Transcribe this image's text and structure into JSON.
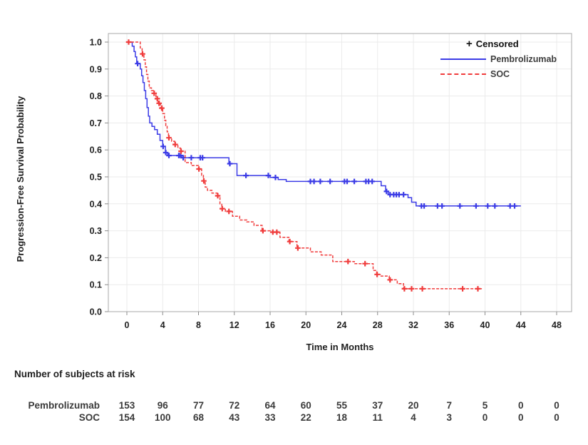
{
  "legend": {
    "censored": {
      "marker": "+",
      "label": "Censored"
    },
    "entries": [
      {
        "id": "pembrolizumab",
        "label": "Pembrolizumab"
      },
      {
        "id": "soc",
        "label": "SOC"
      }
    ]
  },
  "chart_data": {
    "type": "line",
    "subtype": "kaplan-meier-step",
    "title": "",
    "xlabel": "Time in Months",
    "ylabel": "Progression-Free Survival Probability",
    "xlim": [
      0,
      48
    ],
    "ylim": [
      0.0,
      1.0
    ],
    "x_ticks": [
      0,
      4,
      8,
      12,
      16,
      20,
      24,
      28,
      32,
      36,
      40,
      44,
      48
    ],
    "y_ticks": [
      0.0,
      0.1,
      0.2,
      0.3,
      0.4,
      0.5,
      0.6,
      0.7,
      0.8,
      0.9,
      1.0
    ],
    "grid": true,
    "legend_position": "top-right-inside",
    "series": [
      {
        "id": "pembrolizumab",
        "name": "Pembrolizumab",
        "color": "#3B3BE6",
        "dash": "",
        "end_time": 44.0,
        "points": [
          [
            0,
            1
          ],
          [
            0.6,
            0.985
          ],
          [
            0.8,
            0.965
          ],
          [
            0.95,
            0.945
          ],
          [
            1.1,
            0.92
          ],
          [
            1.5,
            0.9
          ],
          [
            1.65,
            0.875
          ],
          [
            1.8,
            0.85
          ],
          [
            1.95,
            0.82
          ],
          [
            2.1,
            0.79
          ],
          [
            2.25,
            0.757
          ],
          [
            2.4,
            0.725
          ],
          [
            2.55,
            0.7
          ],
          [
            2.8,
            0.687
          ],
          [
            3.1,
            0.675
          ],
          [
            3.4,
            0.658
          ],
          [
            3.7,
            0.635
          ],
          [
            4.0,
            0.613
          ],
          [
            4.3,
            0.59
          ],
          [
            4.55,
            0.579
          ],
          [
            6.1,
            0.571
          ],
          [
            11.4,
            0.549
          ],
          [
            12.3,
            0.505
          ],
          [
            16.0,
            0.498
          ],
          [
            16.9,
            0.49
          ],
          [
            17.8,
            0.483
          ],
          [
            28.4,
            0.467
          ],
          [
            28.9,
            0.446
          ],
          [
            29.2,
            0.434
          ],
          [
            31.4,
            0.423
          ],
          [
            31.8,
            0.406
          ],
          [
            32.3,
            0.392
          ]
        ],
        "censored": [
          [
            1.2,
            0.92
          ],
          [
            4.05,
            0.613
          ],
          [
            4.35,
            0.59
          ],
          [
            4.7,
            0.579
          ],
          [
            5.8,
            0.579
          ],
          [
            6.0,
            0.579
          ],
          [
            6.3,
            0.571
          ],
          [
            7.2,
            0.571
          ],
          [
            8.2,
            0.571
          ],
          [
            8.45,
            0.571
          ],
          [
            11.5,
            0.549
          ],
          [
            13.3,
            0.505
          ],
          [
            15.8,
            0.505
          ],
          [
            16.6,
            0.498
          ],
          [
            20.5,
            0.483
          ],
          [
            20.9,
            0.483
          ],
          [
            21.6,
            0.483
          ],
          [
            22.7,
            0.483
          ],
          [
            24.3,
            0.483
          ],
          [
            24.6,
            0.483
          ],
          [
            25.4,
            0.483
          ],
          [
            26.7,
            0.483
          ],
          [
            27.0,
            0.483
          ],
          [
            27.4,
            0.483
          ],
          [
            29.0,
            0.446
          ],
          [
            29.4,
            0.434
          ],
          [
            29.8,
            0.434
          ],
          [
            30.1,
            0.434
          ],
          [
            30.4,
            0.434
          ],
          [
            30.9,
            0.434
          ],
          [
            32.9,
            0.392
          ],
          [
            33.2,
            0.392
          ],
          [
            34.7,
            0.392
          ],
          [
            35.2,
            0.392
          ],
          [
            37.2,
            0.392
          ],
          [
            39.0,
            0.392
          ],
          [
            40.3,
            0.392
          ],
          [
            41.1,
            0.392
          ],
          [
            42.8,
            0.392
          ],
          [
            43.3,
            0.392
          ]
        ]
      },
      {
        "id": "soc",
        "name": "SOC",
        "color": "#F03C3C",
        "dash": "4,2",
        "end_time": 39.8,
        "points": [
          [
            0,
            1
          ],
          [
            1.5,
            0.978
          ],
          [
            1.7,
            0.956
          ],
          [
            1.9,
            0.934
          ],
          [
            2.05,
            0.908
          ],
          [
            2.2,
            0.88
          ],
          [
            2.35,
            0.855
          ],
          [
            2.5,
            0.83
          ],
          [
            2.75,
            0.82
          ],
          [
            2.95,
            0.81
          ],
          [
            3.25,
            0.79
          ],
          [
            3.5,
            0.773
          ],
          [
            3.75,
            0.755
          ],
          [
            4.0,
            0.735
          ],
          [
            4.2,
            0.71
          ],
          [
            4.35,
            0.69
          ],
          [
            4.5,
            0.667
          ],
          [
            4.65,
            0.645
          ],
          [
            5.0,
            0.632
          ],
          [
            5.35,
            0.62
          ],
          [
            5.7,
            0.607
          ],
          [
            6.0,
            0.595
          ],
          [
            6.5,
            0.553
          ],
          [
            7.2,
            0.542
          ],
          [
            8.0,
            0.529
          ],
          [
            8.35,
            0.506
          ],
          [
            8.55,
            0.485
          ],
          [
            8.75,
            0.462
          ],
          [
            9.0,
            0.45
          ],
          [
            9.5,
            0.44
          ],
          [
            10.1,
            0.43
          ],
          [
            10.4,
            0.4
          ],
          [
            10.6,
            0.382
          ],
          [
            11.0,
            0.372
          ],
          [
            11.8,
            0.354
          ],
          [
            12.6,
            0.34
          ],
          [
            13.4,
            0.333
          ],
          [
            14.2,
            0.32
          ],
          [
            15.1,
            0.3
          ],
          [
            16.0,
            0.295
          ],
          [
            17.1,
            0.276
          ],
          [
            18.1,
            0.26
          ],
          [
            19.0,
            0.236
          ],
          [
            20.5,
            0.222
          ],
          [
            21.7,
            0.21
          ],
          [
            23.0,
            0.186
          ],
          [
            25.4,
            0.178
          ],
          [
            27.5,
            0.153
          ],
          [
            27.9,
            0.138
          ],
          [
            28.3,
            0.132
          ],
          [
            29.3,
            0.118
          ],
          [
            30.2,
            0.104
          ],
          [
            30.9,
            0.085
          ]
        ],
        "censored": [
          [
            0.2,
            1
          ],
          [
            1.75,
            0.956
          ],
          [
            3.05,
            0.81
          ],
          [
            3.4,
            0.79
          ],
          [
            3.6,
            0.773
          ],
          [
            3.9,
            0.755
          ],
          [
            4.7,
            0.645
          ],
          [
            5.4,
            0.62
          ],
          [
            6.05,
            0.595
          ],
          [
            8.05,
            0.529
          ],
          [
            8.6,
            0.485
          ],
          [
            10.15,
            0.43
          ],
          [
            10.65,
            0.382
          ],
          [
            11.4,
            0.372
          ],
          [
            15.2,
            0.3
          ],
          [
            16.3,
            0.295
          ],
          [
            16.75,
            0.295
          ],
          [
            18.2,
            0.26
          ],
          [
            19.1,
            0.236
          ],
          [
            24.7,
            0.186
          ],
          [
            26.6,
            0.178
          ],
          [
            27.95,
            0.138
          ],
          [
            29.4,
            0.118
          ],
          [
            31.0,
            0.085
          ],
          [
            31.8,
            0.085
          ],
          [
            33.0,
            0.085
          ],
          [
            37.5,
            0.085
          ],
          [
            39.2,
            0.085
          ]
        ]
      }
    ]
  },
  "risk_table": {
    "title": "Number of subjects at risk",
    "time_points": [
      0,
      4,
      8,
      12,
      16,
      20,
      24,
      28,
      32,
      36,
      40,
      44,
      48
    ],
    "rows": [
      {
        "label": "Pembrolizumab",
        "counts": [
          153,
          96,
          77,
          72,
          64,
          60,
          55,
          37,
          20,
          7,
          5,
          0,
          0
        ]
      },
      {
        "label": "SOC",
        "counts": [
          154,
          100,
          68,
          43,
          33,
          22,
          18,
          11,
          4,
          3,
          0,
          0,
          0
        ]
      }
    ]
  }
}
